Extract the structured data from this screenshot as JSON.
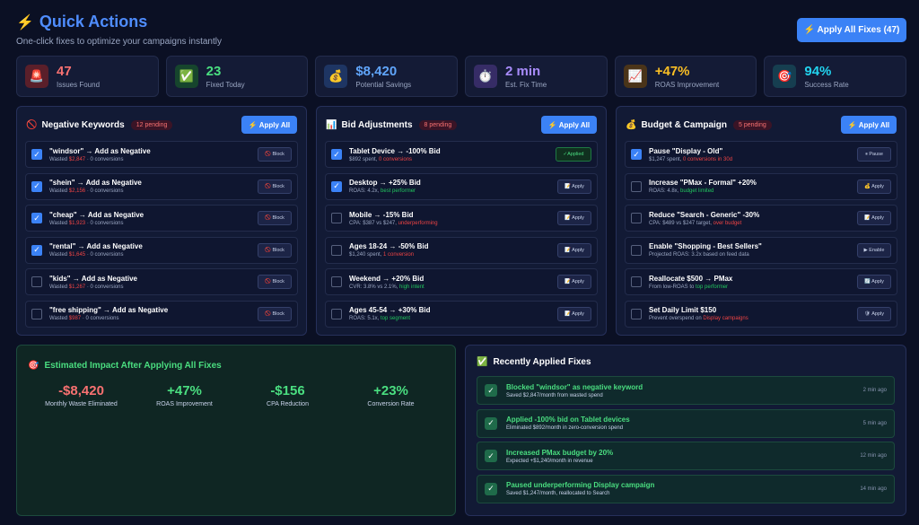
{
  "header": {
    "title_icon": "⚡",
    "title": "Quick Actions",
    "subtitle": "One-click fixes to optimize your campaigns instantly",
    "apply_all_label": "⚡ Apply All Fixes (47)"
  },
  "stats": [
    {
      "icon": "🚨",
      "value": "47",
      "label": "Issues Found",
      "color": "#f87171",
      "icon_bg": "#5a1f2a"
    },
    {
      "icon": "✅",
      "value": "23",
      "label": "Fixed Today",
      "color": "#4ade80",
      "icon_bg": "#16452d"
    },
    {
      "icon": "💰",
      "value": "$8,420",
      "label": "Potential Savings",
      "color": "#60a5fa",
      "icon_bg": "#1e3563"
    },
    {
      "icon": "⏱️",
      "value": "2 min",
      "label": "Est. Fix Time",
      "color": "#a78bfa",
      "icon_bg": "#362c66"
    },
    {
      "icon": "📈",
      "value": "+47%",
      "label": "ROAS Improvement",
      "color": "#fbbf24",
      "icon_bg": "#4a3419"
    },
    {
      "icon": "🎯",
      "value": "94%",
      "label": "Success Rate",
      "color": "#22d3ee",
      "icon_bg": "#163e50"
    }
  ],
  "panels": [
    {
      "icon": "🚫",
      "title": "Negative Keywords",
      "pending": "12 pending",
      "apply_label": "⚡ Apply All",
      "rows": [
        {
          "checked": true,
          "title": "\"windsor\" → Add as Negative",
          "sub_pre": "Wasted ",
          "sub_hl": "$2,847",
          "sub_post": " · 0 conversions",
          "hl": "red",
          "btn": "🚫 Block"
        },
        {
          "checked": true,
          "title": "\"shein\" → Add as Negative",
          "sub_pre": "Wasted ",
          "sub_hl": "$2,156",
          "sub_post": " · 0 conversions",
          "hl": "red",
          "btn": "🚫 Block"
        },
        {
          "checked": true,
          "title": "\"cheap\" → Add as Negative",
          "sub_pre": "Wasted ",
          "sub_hl": "$1,923",
          "sub_post": " · 0 conversions",
          "hl": "red",
          "btn": "🚫 Block"
        },
        {
          "checked": true,
          "title": "\"rental\" → Add as Negative",
          "sub_pre": "Wasted ",
          "sub_hl": "$1,645",
          "sub_post": " · 0 conversions",
          "hl": "red",
          "btn": "🚫 Block"
        },
        {
          "checked": false,
          "title": "\"kids\" → Add as Negative",
          "sub_pre": "Wasted ",
          "sub_hl": "$1,267",
          "sub_post": " · 0 conversions",
          "hl": "red",
          "btn": "🚫 Block"
        },
        {
          "checked": false,
          "title": "\"free shipping\" → Add as Negative",
          "sub_pre": "Wasted ",
          "sub_hl": "$987",
          "sub_post": " · 0 conversions",
          "hl": "red",
          "btn": "🚫 Block"
        }
      ]
    },
    {
      "icon": "📊",
      "title": "Bid Adjustments",
      "pending": "8 pending",
      "apply_label": "⚡ Apply All",
      "rows": [
        {
          "checked": true,
          "title": "Tablet Device → -100% Bid",
          "sub_pre": "$892 spent, ",
          "sub_hl": "0 conversions",
          "sub_post": "",
          "hl": "red",
          "btn": "✓Applied",
          "applied": true
        },
        {
          "checked": true,
          "title": "Desktop → +25% Bid",
          "sub_pre": "ROAS: 4.2x, ",
          "sub_hl": "best performer",
          "sub_post": "",
          "hl": "green",
          "btn": "📝 Apply"
        },
        {
          "checked": false,
          "title": "Mobile → -15% Bid",
          "sub_pre": "CPA: $387 vs $247, ",
          "sub_hl": "underperforming",
          "sub_post": "",
          "hl": "red",
          "btn": "📝 Apply"
        },
        {
          "checked": false,
          "title": "Ages 18-24 → -50% Bid",
          "sub_pre": "$1,240 spent, ",
          "sub_hl": "1 conversion",
          "sub_post": "",
          "hl": "red",
          "btn": "📝 Apply"
        },
        {
          "checked": false,
          "title": "Weekend → +20% Bid",
          "sub_pre": "CVR: 3.8% vs 2.1%, ",
          "sub_hl": "high intent",
          "sub_post": "",
          "hl": "green",
          "btn": "📝 Apply"
        },
        {
          "checked": false,
          "title": "Ages 45-54 → +30% Bid",
          "sub_pre": "ROAS: 5.1x, ",
          "sub_hl": "top segment",
          "sub_post": "",
          "hl": "green",
          "btn": "📝 Apply"
        }
      ]
    },
    {
      "icon": "💰",
      "title": "Budget & Campaign",
      "pending": "5 pending",
      "apply_label": "⚡ Apply All",
      "rows": [
        {
          "checked": true,
          "title": "Pause \"Display - Old\"",
          "sub_pre": "$1,247 spent, ",
          "sub_hl": "0 conversions in 30d",
          "sub_post": "",
          "hl": "red",
          "btn": "⏸ Pause"
        },
        {
          "checked": false,
          "title": "Increase \"PMax - Formal\" +20%",
          "sub_pre": "ROAS: 4.8x, ",
          "sub_hl": "budget limited",
          "sub_post": "",
          "hl": "green",
          "btn": "💰 Apply"
        },
        {
          "checked": false,
          "title": "Reduce \"Search - Generic\" -30%",
          "sub_pre": "CPA: $489 vs $247 target, ",
          "sub_hl": "over budget",
          "sub_post": "",
          "hl": "red",
          "btn": "📝 Apply"
        },
        {
          "checked": false,
          "title": "Enable \"Shopping - Best Sellers\"",
          "sub_pre": "Projected ROAS: 3.2x based on feed data",
          "sub_hl": "",
          "sub_post": "",
          "hl": "green",
          "btn": "▶ Enable"
        },
        {
          "checked": false,
          "title": "Reallocate $500 → PMax",
          "sub_pre": "From low-ROAS to ",
          "sub_hl": "top performer",
          "sub_post": "",
          "hl": "green",
          "btn": "🔄 Apply"
        },
        {
          "checked": false,
          "title": "Set Daily Limit $150",
          "sub_pre": "Prevent overspend on ",
          "sub_hl": "Display campaigns",
          "sub_post": "",
          "hl": "red",
          "btn": "🛡 Apply"
        }
      ]
    }
  ],
  "impact": {
    "icon": "🎯",
    "title": "Estimated Impact After Applying All Fixes",
    "metrics": [
      {
        "value": "-$8,420",
        "label": "Monthly Waste Eliminated",
        "color": "#f87171"
      },
      {
        "value": "+47%",
        "label": "ROAS Improvement",
        "color": "#4ade80"
      },
      {
        "value": "-$156",
        "label": "CPA Reduction",
        "color": "#4ade80"
      },
      {
        "value": "+23%",
        "label": "Conversion Rate",
        "color": "#4ade80"
      }
    ]
  },
  "recent": {
    "icon": "✅",
    "title": "Recently Applied Fixes",
    "items": [
      {
        "name": "Blocked \"windsor\" as negative keyword",
        "sub": "Saved $2,847/month from wasted spend",
        "time": "2 min ago"
      },
      {
        "name": "Applied -100% bid on Tablet devices",
        "sub": "Eliminated $892/month in zero-conversion spend",
        "time": "5 min ago"
      },
      {
        "name": "Increased PMax budget by 20%",
        "sub": "Expected +$1,240/month in revenue",
        "time": "12 min ago"
      },
      {
        "name": "Paused underperforming Display campaign",
        "sub": "Saved $1,247/month, reallocated to Search",
        "time": "14 min ago"
      }
    ]
  }
}
